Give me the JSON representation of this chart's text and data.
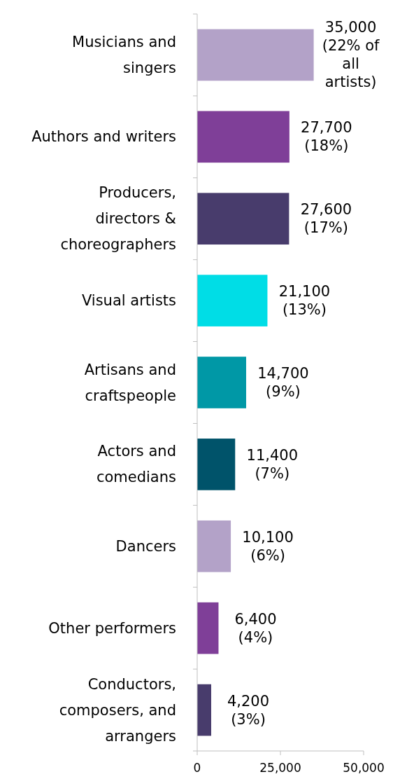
{
  "chart_data": {
    "type": "bar",
    "orientation": "horizontal",
    "categories": [
      "Musicians and\nsingers",
      "Authors and writers",
      "Producers,\ndirectors &\nchoreographers",
      "Visual artists",
      "Artisans and\ncraftspeople",
      "Actors and\ncomedians",
      "Dancers",
      "Other performers",
      "Conductors,\ncomposers, and\narrangers"
    ],
    "values": [
      35000,
      27700,
      27600,
      21100,
      14700,
      11400,
      10100,
      6400,
      4200
    ],
    "colors": [
      "#b3a2c8",
      "#7f3f98",
      "#483c6c",
      "#00dde6",
      "#0098a6",
      "#00536a",
      "#b3a2c8",
      "#7f3f98",
      "#483c6c"
    ],
    "value_labels": [
      "35,000\n(22% of\nall\nartists)",
      "27,700\n(18%)",
      "27,600\n(17%)",
      "21,100\n(13%)",
      "14,700\n(9%)",
      "11,400\n(7%)",
      "10,100\n(6%)",
      "6,400\n(4%)",
      "4,200\n(3%)"
    ],
    "xlim": [
      0,
      50000
    ],
    "xticks": [
      {
        "value": 0,
        "label": "0"
      },
      {
        "value": 25000,
        "label": "25,000"
      },
      {
        "value": 50000,
        "label": "50,000"
      }
    ],
    "grid": false
  }
}
